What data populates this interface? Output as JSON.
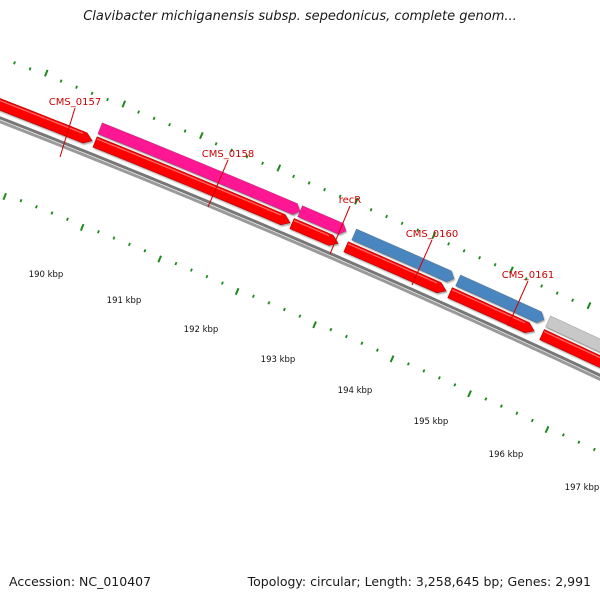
{
  "title": "Clavibacter michiganensis subsp. sepedonicus, complete genom...",
  "accession_text": "Accession: NC_010407",
  "summary_text": "Topology: circular; Length: 3,258,645 bp; Genes: 2,991",
  "colors": {
    "background": "#ffffff",
    "cds_forward": "#ff0000",
    "backbone": "#777777",
    "tick": "#1a8a1a",
    "label": "#cc0000",
    "gene_magenta": "#ff1493",
    "gene_steelblue": "#4a86c0",
    "gene_gray": "#c8c8c8"
  },
  "genes": [
    {
      "label": "CMS_0157",
      "color": "#ff1493"
    },
    {
      "label": "CMS_0158",
      "color": "#ff1493"
    },
    {
      "label": "recR",
      "color": "#ff1493"
    },
    {
      "label": "CMS_0160",
      "color": "#4a86c0"
    },
    {
      "label": "CMS_0161",
      "color": "#4a86c0"
    },
    {
      "label": "",
      "color": "#c8c8c8"
    }
  ],
  "kbp_ticks": [
    "190 kbp",
    "191 kbp",
    "192 kbp",
    "193 kbp",
    "194 kbp",
    "195 kbp",
    "196 kbp",
    "197 kbp"
  ]
}
